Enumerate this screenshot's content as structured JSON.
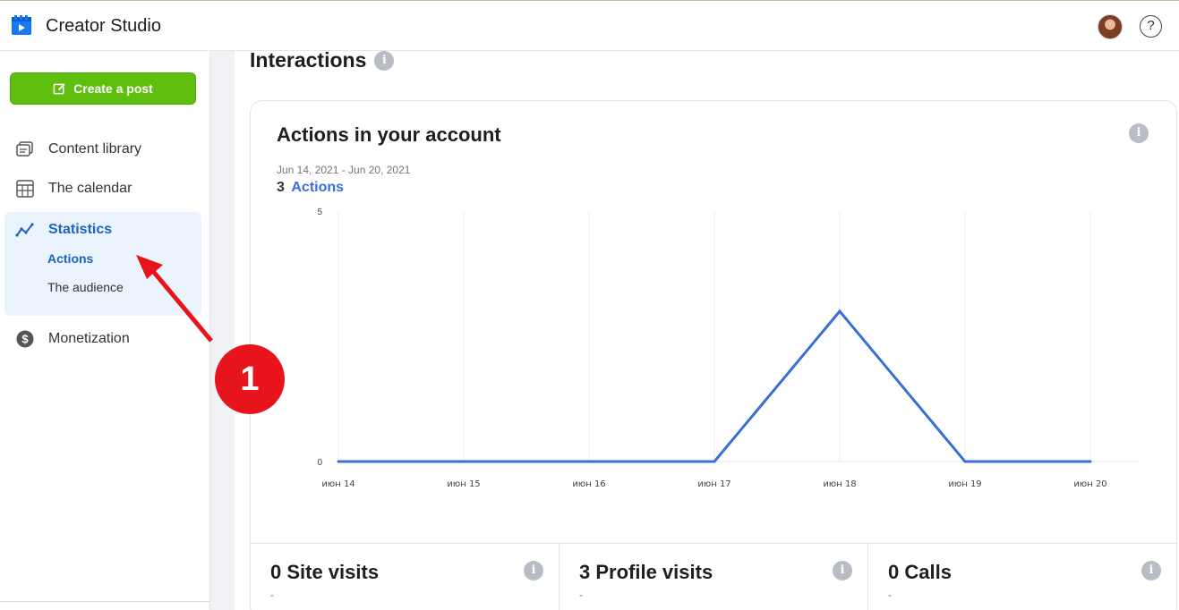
{
  "header": {
    "app_title": "Creator Studio",
    "logo_icon": "creator-studio-logo-icon",
    "help_label": "?"
  },
  "sidebar": {
    "create_post_label": "Create a post",
    "items": [
      {
        "label": "Content library",
        "icon": "content-library-icon"
      },
      {
        "label": "The calendar",
        "icon": "calendar-icon"
      },
      {
        "label": "Statistics",
        "icon": "statistics-icon"
      },
      {
        "label": "Monetization",
        "icon": "dollar-icon"
      }
    ],
    "statistics_subitems": [
      {
        "label": "Actions",
        "active": true
      },
      {
        "label": "The audience",
        "active": false
      }
    ]
  },
  "main": {
    "section_title": "Interactions",
    "card": {
      "title": "Actions in your account",
      "date_range": "Jun 14, 2021 - Jun 20, 2021",
      "count": "3",
      "count_label": "Actions"
    },
    "stats": [
      {
        "title": "0 Site visits",
        "sub": "-"
      },
      {
        "title": "3 Profile visits",
        "sub": "-"
      },
      {
        "title": "0 Calls",
        "sub": "-"
      }
    ]
  },
  "annotation": {
    "badge": "1"
  },
  "colors": {
    "accent": "#1b63c6",
    "create_button": "#5fbf0f",
    "line": "#3b6fd8",
    "annotation": "#e8141d"
  },
  "chart_data": {
    "type": "line",
    "title": "Actions in your account",
    "x": [
      "июн 14",
      "июн 15",
      "июн 16",
      "июн 17",
      "июн 18",
      "июн 19",
      "июн 20"
    ],
    "series": [
      {
        "values": [
          0,
          0,
          0,
          0,
          3,
          0,
          0
        ]
      }
    ],
    "ylim": [
      0,
      5
    ],
    "yticks": [
      "0",
      "5"
    ],
    "grid": "vertical"
  }
}
